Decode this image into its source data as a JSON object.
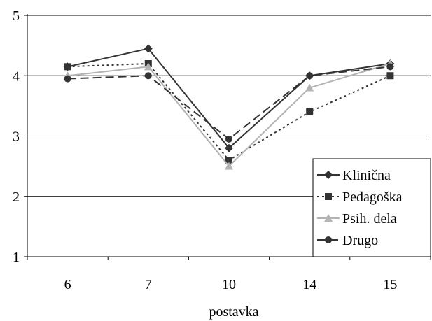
{
  "chart_data": {
    "type": "line",
    "title": "",
    "xlabel": "postavka",
    "ylabel": "",
    "categories": [
      "6",
      "7",
      "10",
      "14",
      "15"
    ],
    "ylim": [
      1,
      5
    ],
    "yticks": [
      "1",
      "2",
      "3",
      "4",
      "5"
    ],
    "grid": "horizontal",
    "legend_position": "bottom-right",
    "series": [
      {
        "name": "Klinična",
        "values": [
          4.15,
          4.45,
          2.8,
          4.0,
          4.2
        ],
        "color": "#333333",
        "dash": "solid",
        "marker": "diamond"
      },
      {
        "name": "Pedagoška",
        "values": [
          4.15,
          4.2,
          2.6,
          3.4,
          4.0
        ],
        "color": "#333333",
        "dash": "dotted",
        "marker": "square"
      },
      {
        "name": "Psih. dela",
        "values": [
          4.0,
          4.15,
          2.5,
          3.8,
          4.2
        ],
        "color": "#b3b3b3",
        "dash": "solid",
        "marker": "triangle"
      },
      {
        "name": "Drugo",
        "values": [
          3.95,
          4.0,
          2.95,
          4.0,
          4.15
        ],
        "color": "#333333",
        "dash": "dashed",
        "marker": "circle"
      }
    ]
  }
}
